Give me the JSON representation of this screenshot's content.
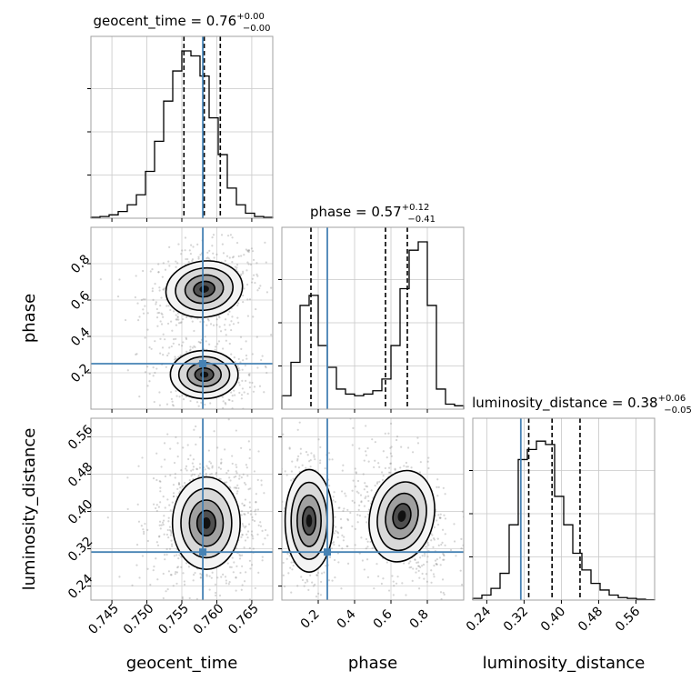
{
  "chart_data": {
    "type": "corner",
    "parameters": [
      "geocent_time",
      "phase",
      "luminosity_distance"
    ],
    "truths": {
      "geocent_time": 0.758,
      "phase": 0.25,
      "luminosity_distance": 0.313
    },
    "truth_color": "#4682b4",
    "axes": {
      "geocent_time": {
        "range": [
          0.742,
          0.768
        ],
        "ticks": [
          0.745,
          0.75,
          0.755,
          0.76,
          0.765
        ],
        "tick_labels": [
          "0.745",
          "0.750",
          "0.755",
          "0.760",
          "0.765"
        ],
        "label": "geocent_time"
      },
      "phase": {
        "range": [
          0.0,
          1.0
        ],
        "ticks": [
          0.2,
          0.4,
          0.6,
          0.8
        ],
        "tick_labels": [
          "0.2",
          "0.4",
          "0.6",
          "0.8"
        ],
        "label": "phase"
      },
      "luminosity_distance": {
        "range": [
          0.21,
          0.6
        ],
        "ticks": [
          0.24,
          0.32,
          0.4,
          0.48,
          0.56
        ],
        "tick_labels": [
          "0.24",
          "0.32",
          "0.40",
          "0.48",
          "0.56"
        ],
        "label": "luminosity_distance"
      }
    },
    "titles": {
      "geocent_time": {
        "name": "geocent_time",
        "value": "0.76",
        "plus": "+0.00",
        "minus": "−0.00"
      },
      "phase": {
        "name": "phase",
        "value": "0.57",
        "plus": "+0.12",
        "minus": "−0.41"
      },
      "luminosity_distance": {
        "name": "luminosity_distance",
        "value": "0.38",
        "plus": "+0.06",
        "minus": "−0.05"
      }
    },
    "quantiles": {
      "geocent_time": [
        0.7553,
        0.7582,
        0.7605
      ],
      "phase": [
        0.16,
        0.57,
        0.69
      ],
      "luminosity_distance": [
        0.33,
        0.38,
        0.44
      ]
    },
    "histograms": {
      "geocent_time": [
        0.005,
        0.01,
        0.02,
        0.04,
        0.08,
        0.14,
        0.28,
        0.46,
        0.7,
        0.88,
        1.0,
        0.97,
        0.85,
        0.6,
        0.38,
        0.18,
        0.08,
        0.03,
        0.01,
        0.005
      ],
      "phase": [
        0.08,
        0.28,
        0.62,
        0.68,
        0.38,
        0.25,
        0.12,
        0.09,
        0.08,
        0.09,
        0.11,
        0.18,
        0.38,
        0.72,
        0.95,
        1.0,
        0.62,
        0.12,
        0.03,
        0.02
      ],
      "luminosity_distance": [
        0.01,
        0.03,
        0.07,
        0.16,
        0.45,
        0.84,
        0.9,
        0.95,
        0.93,
        0.62,
        0.45,
        0.28,
        0.18,
        0.1,
        0.06,
        0.03,
        0.015,
        0.01,
        0.005,
        0.002
      ]
    }
  }
}
